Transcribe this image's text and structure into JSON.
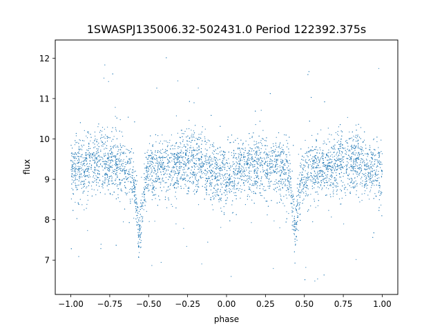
{
  "chart_data": {
    "type": "scatter",
    "title": "1SWASPJ135006.32-502431.0 Period 122392.375s",
    "xlabel": "phase",
    "ylabel": "flux",
    "xlim": [
      -1.1,
      1.1
    ],
    "ylim": [
      6.15,
      12.45
    ],
    "x_ticks": [
      -1.0,
      -0.75,
      -0.5,
      -0.25,
      0.0,
      0.25,
      0.5,
      0.75,
      1.0
    ],
    "x_tick_labels": [
      "−1.00",
      "−0.75",
      "−0.50",
      "−0.25",
      "0.00",
      "0.25",
      "0.50",
      "0.75",
      "1.00"
    ],
    "y_ticks": [
      7,
      8,
      9,
      10,
      11,
      12
    ],
    "y_tick_labels": [
      "7",
      "8",
      "9",
      "10",
      "11",
      "12"
    ],
    "grid": false,
    "legend": "none",
    "series": [
      {
        "color": "#1f77b4",
        "marker": "point",
        "baseline_flux": 9.3,
        "eclipse_phases": [
          -0.56,
          0.44
        ],
        "eclipse_min_flux": 7.5,
        "x": [
          -1.0,
          -0.95,
          -0.9,
          -0.85,
          -0.8,
          -0.75,
          -0.7,
          -0.65,
          -0.6,
          -0.58,
          -0.56,
          -0.54,
          -0.52,
          -0.5,
          -0.45,
          -0.4,
          -0.35,
          -0.3,
          -0.25,
          -0.2,
          -0.15,
          -0.1,
          -0.05,
          0.0,
          0.05,
          0.1,
          0.15,
          0.2,
          0.25,
          0.3,
          0.35,
          0.4,
          0.42,
          0.44,
          0.46,
          0.48,
          0.5,
          0.55,
          0.6,
          0.65,
          0.7,
          0.75,
          0.8,
          0.85,
          0.9,
          0.95,
          1.0
        ],
        "y": [
          9.2,
          9.25,
          9.35,
          9.4,
          9.45,
          9.4,
          9.35,
          9.25,
          9.05,
          8.4,
          7.6,
          8.3,
          8.95,
          9.15,
          9.2,
          9.25,
          9.3,
          9.35,
          9.4,
          9.4,
          9.35,
          9.2,
          9.1,
          9.1,
          9.15,
          9.25,
          9.3,
          9.35,
          9.4,
          9.35,
          9.3,
          9.15,
          8.5,
          7.7,
          8.4,
          8.95,
          9.15,
          9.2,
          9.25,
          9.3,
          9.35,
          9.4,
          9.45,
          9.4,
          9.3,
          9.2,
          9.15
        ]
      }
    ]
  }
}
